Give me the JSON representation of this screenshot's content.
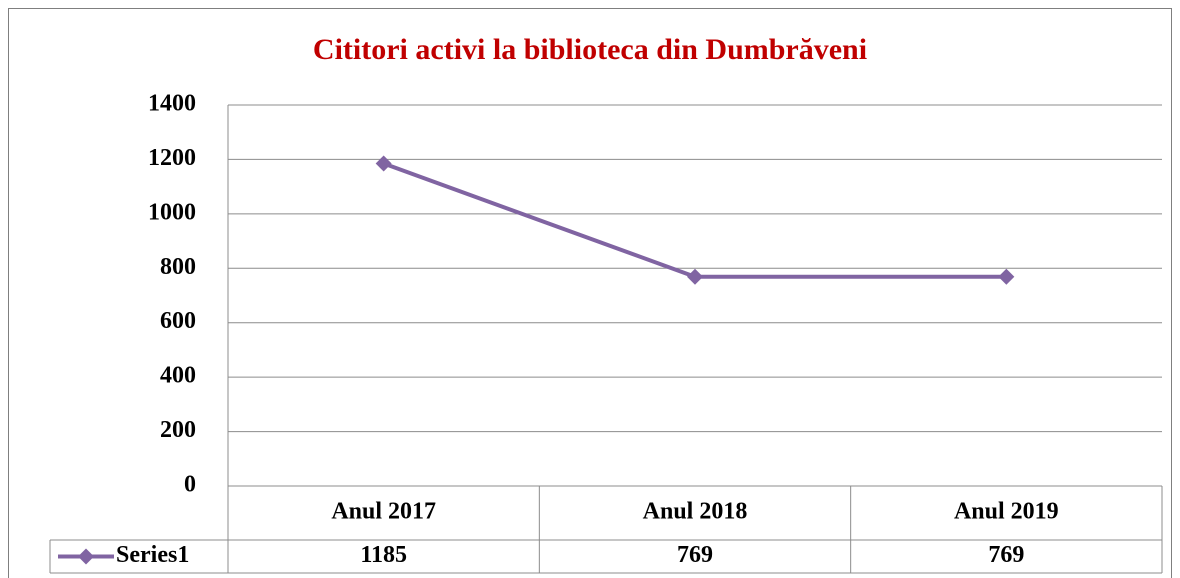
{
  "chart_data": {
    "type": "line",
    "title": "Cititori activi la biblioteca din Dumbrăveni",
    "categories": [
      "Anul 2017",
      "Anul 2018",
      "Anul 2019"
    ],
    "series": [
      {
        "name": "Series1",
        "color": "#8064a2",
        "values": [
          1185,
          769,
          769
        ]
      }
    ],
    "ylim": [
      0,
      1400
    ],
    "yticks": [
      0,
      200,
      400,
      600,
      800,
      1000,
      1200,
      1400
    ],
    "grid": true,
    "data_table": true
  }
}
